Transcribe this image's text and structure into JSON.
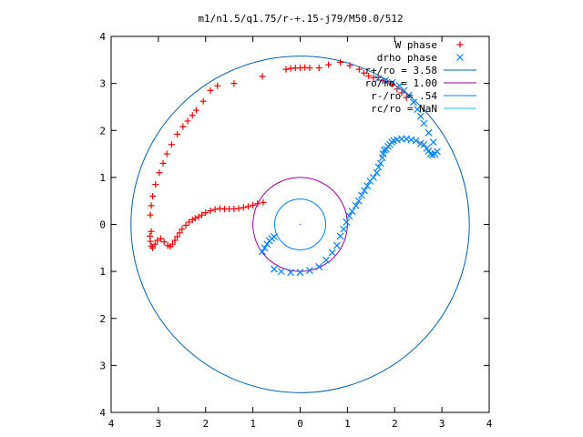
{
  "chart_data": {
    "type": "scatter",
    "title": "m1/n1.5/q1.75/r-+.15-j79/M50.0/512",
    "xlabel": "",
    "ylabel": "",
    "xlim": [
      -4,
      4
    ],
    "ylim": [
      -4,
      4
    ],
    "x_ticks": [
      {
        "v": -4,
        "label": "4"
      },
      {
        "v": -3,
        "label": "3"
      },
      {
        "v": -2,
        "label": "2"
      },
      {
        "v": -1,
        "label": "1"
      },
      {
        "v": 0,
        "label": "0"
      },
      {
        "v": 1,
        "label": "1"
      },
      {
        "v": 2,
        "label": "2"
      },
      {
        "v": 3,
        "label": "3"
      },
      {
        "v": 4,
        "label": "4"
      }
    ],
    "y_ticks": [
      {
        "v": 4,
        "label": "4"
      },
      {
        "v": 3,
        "label": "3"
      },
      {
        "v": 2,
        "label": "2"
      },
      {
        "v": 1,
        "label": "1"
      },
      {
        "v": 0,
        "label": "0"
      },
      {
        "v": -1,
        "label": "1"
      },
      {
        "v": -2,
        "label": "2"
      },
      {
        "v": -3,
        "label": "3"
      },
      {
        "v": -4,
        "label": "4"
      }
    ],
    "grid": false,
    "legend_position": "top-right",
    "series": [
      {
        "name": "W phase",
        "kind": "points",
        "marker": "plus",
        "color": "#ff0000",
        "points": [
          [
            -0.78,
            0.47
          ],
          [
            -0.9,
            0.44
          ],
          [
            -1.0,
            0.41
          ],
          [
            -1.1,
            0.38
          ],
          [
            -1.2,
            0.36
          ],
          [
            -1.3,
            0.34
          ],
          [
            -1.4,
            0.33
          ],
          [
            -1.5,
            0.33
          ],
          [
            -1.6,
            0.33
          ],
          [
            -1.7,
            0.34
          ],
          [
            -1.8,
            0.32
          ],
          [
            -1.9,
            0.29
          ],
          [
            -2.0,
            0.25
          ],
          [
            -2.08,
            0.2
          ],
          [
            -2.15,
            0.16
          ],
          [
            -2.22,
            0.13
          ],
          [
            -2.28,
            0.1
          ],
          [
            -2.35,
            0.05
          ],
          [
            -2.42,
            -0.02
          ],
          [
            -2.5,
            -0.1
          ],
          [
            -2.55,
            -0.18
          ],
          [
            -2.6,
            -0.26
          ],
          [
            -2.65,
            -0.34
          ],
          [
            -2.7,
            -0.42
          ],
          [
            -2.75,
            -0.47
          ],
          [
            -2.8,
            -0.45
          ],
          [
            -2.88,
            -0.37
          ],
          [
            -2.95,
            -0.3
          ],
          [
            -3.02,
            -0.34
          ],
          [
            -3.07,
            -0.42
          ],
          [
            -3.12,
            -0.5
          ],
          [
            -3.15,
            -0.46
          ],
          [
            -3.17,
            -0.36
          ],
          [
            -3.18,
            -0.25
          ],
          [
            -3.15,
            -0.15
          ],
          [
            -3.17,
            0.2
          ],
          [
            -3.15,
            0.4
          ],
          [
            -3.12,
            0.6
          ],
          [
            -3.06,
            0.85
          ],
          [
            -2.98,
            1.1
          ],
          [
            -2.9,
            1.3
          ],
          [
            -2.82,
            1.5
          ],
          [
            -2.72,
            1.7
          ],
          [
            -2.6,
            1.92
          ],
          [
            -2.48,
            2.08
          ],
          [
            -2.38,
            2.2
          ],
          [
            -2.28,
            2.32
          ],
          [
            -2.2,
            2.43
          ],
          [
            -2.05,
            2.62
          ],
          [
            -1.9,
            2.85
          ],
          [
            -1.75,
            2.95
          ],
          [
            -1.4,
            3.0
          ],
          [
            -0.8,
            3.15
          ],
          [
            -0.3,
            3.3
          ],
          [
            -0.2,
            3.32
          ],
          [
            -0.1,
            3.33
          ],
          [
            0.0,
            3.33
          ],
          [
            0.1,
            3.34
          ],
          [
            0.2,
            3.33
          ],
          [
            0.4,
            3.33
          ],
          [
            0.6,
            3.4
          ],
          [
            0.85,
            3.45
          ],
          [
            1.05,
            3.38
          ],
          [
            1.25,
            3.3
          ],
          [
            1.35,
            3.22
          ],
          [
            1.45,
            3.16
          ],
          [
            1.55,
            3.12
          ],
          [
            1.65,
            3.12
          ],
          [
            1.75,
            3.06
          ],
          [
            1.85,
            3.01
          ],
          [
            1.95,
            2.98
          ],
          [
            2.05,
            2.88
          ],
          [
            2.15,
            2.8
          ],
          [
            2.25,
            2.7
          ]
        ]
      },
      {
        "name": "drho phase",
        "kind": "points",
        "marker": "cross",
        "color": "#0080ff",
        "points": [
          [
            -0.55,
            -0.26
          ],
          [
            -0.6,
            -0.3
          ],
          [
            -0.65,
            -0.35
          ],
          [
            -0.7,
            -0.42
          ],
          [
            -0.75,
            -0.5
          ],
          [
            -0.8,
            -0.58
          ],
          [
            -0.55,
            -0.95
          ],
          [
            -0.4,
            -1.0
          ],
          [
            -0.2,
            -1.02
          ],
          [
            0.0,
            -1.02
          ],
          [
            0.2,
            -0.98
          ],
          [
            0.4,
            -0.9
          ],
          [
            0.55,
            -0.76
          ],
          [
            0.68,
            -0.6
          ],
          [
            0.78,
            -0.45
          ],
          [
            0.85,
            -0.25
          ],
          [
            0.92,
            -0.1
          ],
          [
            0.98,
            0.05
          ],
          [
            1.04,
            0.18
          ],
          [
            1.1,
            0.28
          ],
          [
            1.18,
            0.4
          ],
          [
            1.24,
            0.5
          ],
          [
            1.3,
            0.62
          ],
          [
            1.36,
            0.72
          ],
          [
            1.42,
            0.82
          ],
          [
            1.48,
            0.92
          ],
          [
            1.55,
            1.0
          ],
          [
            1.62,
            1.1
          ],
          [
            1.66,
            1.22
          ],
          [
            1.7,
            1.3
          ],
          [
            1.74,
            1.42
          ],
          [
            1.76,
            1.5
          ],
          [
            1.78,
            1.58
          ],
          [
            1.82,
            1.6
          ],
          [
            1.86,
            1.66
          ],
          [
            1.9,
            1.7
          ],
          [
            1.94,
            1.75
          ],
          [
            1.98,
            1.78
          ],
          [
            2.05,
            1.8
          ],
          [
            2.15,
            1.82
          ],
          [
            2.25,
            1.82
          ],
          [
            2.35,
            1.8
          ],
          [
            2.45,
            1.78
          ],
          [
            2.55,
            1.72
          ],
          [
            2.62,
            1.7
          ],
          [
            2.68,
            1.62
          ],
          [
            2.72,
            1.56
          ],
          [
            2.76,
            1.5
          ],
          [
            2.8,
            1.48
          ],
          [
            2.85,
            1.5
          ],
          [
            2.9,
            1.55
          ],
          [
            2.82,
            1.75
          ],
          [
            2.72,
            1.95
          ],
          [
            2.62,
            2.15
          ],
          [
            2.55,
            2.3
          ],
          [
            2.48,
            2.45
          ],
          [
            2.4,
            2.6
          ],
          [
            2.3,
            2.75
          ],
          [
            2.2,
            2.85
          ],
          [
            2.1,
            2.95
          ],
          [
            1.95,
            3.02
          ],
          [
            1.8,
            3.06
          ],
          [
            1.65,
            3.1
          ]
        ]
      },
      {
        "name": "r+/ro = 3.58",
        "kind": "circle",
        "radius": 3.58,
        "color": "#0060ad"
      },
      {
        "name": "ro/ro = 1.00",
        "kind": "circle",
        "radius": 1.0,
        "color": "#a000a0"
      },
      {
        "name": "r-/ro = .54",
        "kind": "circle",
        "radius": 0.54,
        "color": "#0080ff"
      },
      {
        "name": "rc/ro = NaN",
        "kind": "circle",
        "radius": 0.0,
        "color": "#20c0e0"
      }
    ]
  }
}
